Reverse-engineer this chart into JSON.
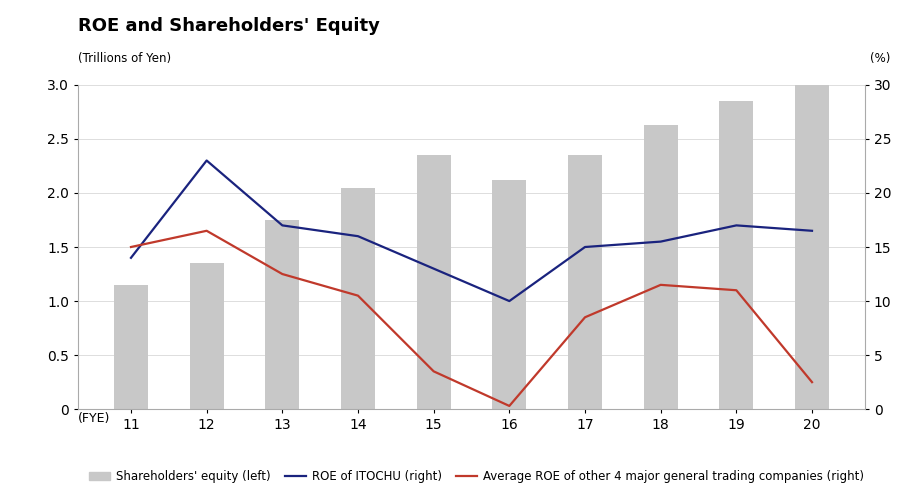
{
  "title": "ROE and Shareholders' Equity",
  "subtitle_left": "(Trillions of Yen)",
  "subtitle_right": "(%)",
  "years": [
    11,
    12,
    13,
    14,
    15,
    16,
    17,
    18,
    19,
    20
  ],
  "bar_label": "Shareholders' equity (left)",
  "bar_color": "#c8c8c8",
  "equity": [
    1.15,
    1.35,
    1.75,
    2.05,
    2.35,
    2.12,
    2.35,
    2.63,
    2.85,
    3.0
  ],
  "roe_itochu_label": "ROE of ITOCHU (right)",
  "roe_itochu_color": "#1a237e",
  "roe_itochu": [
    14.0,
    23.0,
    17.0,
    16.0,
    13.0,
    10.0,
    15.0,
    15.5,
    17.0,
    16.5
  ],
  "roe_avg_label": "Average ROE of other 4 major general trading companies (right)",
  "roe_avg_color": "#c0392b",
  "roe_avg": [
    15.0,
    16.5,
    12.5,
    10.5,
    3.5,
    0.3,
    8.5,
    11.5,
    11.0,
    2.5
  ],
  "ylim_left": [
    0,
    3.0
  ],
  "ylim_right": [
    0,
    30
  ],
  "yticks_left": [
    0,
    0.5,
    1.0,
    1.5,
    2.0,
    2.5,
    3.0
  ],
  "yticks_right": [
    0,
    5,
    10,
    15,
    20,
    25,
    30
  ],
  "xlabel": "(FYE)"
}
